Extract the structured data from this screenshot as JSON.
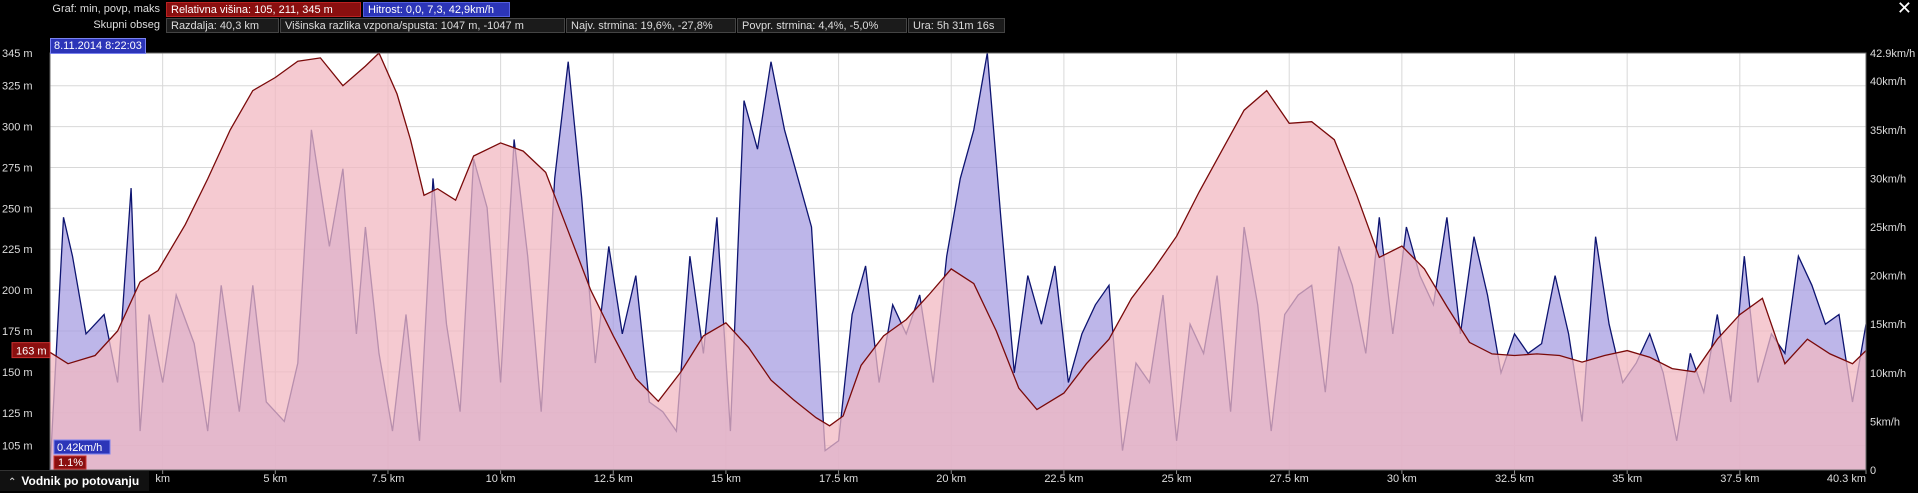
{
  "header": {
    "row1_label": "Graf: min, povp, maks",
    "height_stat": "Relativna višina: 105, 211, 345 m",
    "speed_stat": "Hitrost: 0,0, 7,3, 42,9km/h",
    "row2_label": "Skupni obseg",
    "distance": "Razdalja: 40,3 km",
    "elev_diff": "Višinska razlika vzpona/spusta: 1047 m, -1047 m",
    "max_grade": "Najv. strmina: 19,6%, -27,8%",
    "avg_grade": "Povpr. strmina: 4,4%, -5,0%",
    "time": "Ura: 5h 31m 16s",
    "date": "8.11.2014 8:22:03",
    "close_glyph": "✕"
  },
  "cursor": {
    "elevation_label": "163 m",
    "speed_label": "0.42km/h",
    "grade_label": "1.1%"
  },
  "footer": {
    "caret": "⌃",
    "label": "Vodnik po potovanju"
  },
  "colors": {
    "elevation_line": "#7a0a0a",
    "elevation_fill": "#f2b8c2",
    "speed_line": "#0d1470",
    "speed_fill": "#a79de2",
    "background": "#ffffff",
    "grid": "#d8d8d8"
  },
  "chart_data": {
    "type": "area",
    "xlim": [
      0,
      40.3
    ],
    "x_ticks": [
      "km",
      "5 km",
      "7.5 km",
      "10 km",
      "12.5 km",
      "15 km",
      "17.5 km",
      "20 km",
      "22.5 km",
      "25 km",
      "27.5 km",
      "30 km",
      "32.5 km",
      "35 km",
      "37.5 km",
      "40.3 km"
    ],
    "y_left": {
      "ylim": [
        90,
        345
      ],
      "ticks": [
        "105 m",
        "125 m",
        "150 m",
        "175 m",
        "200 m",
        "225 m",
        "250 m",
        "275 m",
        "300 m",
        "325 m",
        "345 m"
      ]
    },
    "y_right": {
      "ylim": [
        0,
        42.9
      ],
      "ticks": [
        "0",
        "5km/h",
        "10km/h",
        "15km/h",
        "20km/h",
        "25km/h",
        "30km/h",
        "35km/h",
        "40km/h",
        "42.9km/h"
      ]
    },
    "series": [
      {
        "name": "Relativna višina",
        "axis": "left",
        "x": [
          0,
          0.4,
          1.0,
          1.5,
          2.0,
          2.4,
          3.0,
          3.5,
          4.0,
          4.5,
          5.0,
          5.5,
          6.0,
          6.5,
          7.0,
          7.3,
          7.7,
          8.0,
          8.3,
          8.6,
          9.0,
          9.4,
          10.0,
          10.5,
          11.0,
          11.5,
          12.0,
          12.5,
          13.0,
          13.5,
          14.0,
          14.5,
          15.0,
          15.5,
          16.0,
          16.5,
          17.0,
          17.3,
          17.6,
          18.0,
          18.5,
          19.0,
          19.5,
          20.0,
          20.5,
          21.0,
          21.5,
          21.9,
          22.5,
          23.0,
          23.5,
          24.0,
          24.5,
          25.0,
          25.5,
          26.0,
          26.5,
          27.0,
          27.5,
          28.0,
          28.5,
          29.0,
          29.5,
          30.0,
          30.5,
          31.0,
          31.5,
          32.0,
          32.5,
          33.0,
          33.5,
          34.0,
          34.5,
          35.0,
          35.5,
          36.0,
          36.5,
          37.0,
          37.5,
          38.0,
          38.5,
          39.0,
          39.5,
          40.0,
          40.3
        ],
        "y": [
          162,
          155,
          160,
          175,
          205,
          212,
          240,
          268,
          298,
          322,
          330,
          340,
          342,
          325,
          337,
          345,
          320,
          292,
          258,
          262,
          255,
          282,
          290,
          285,
          272,
          236,
          200,
          172,
          146,
          132,
          150,
          172,
          180,
          165,
          145,
          133,
          122,
          117,
          123,
          154,
          172,
          182,
          197,
          213,
          204,
          175,
          140,
          127,
          137,
          155,
          170,
          195,
          213,
          233,
          260,
          285,
          310,
          322,
          302,
          303,
          292,
          258,
          220,
          227,
          213,
          190,
          168,
          161,
          160,
          161,
          160,
          156,
          160,
          163,
          159,
          152,
          150,
          170,
          185,
          195,
          155,
          170,
          161,
          155,
          163
        ]
      },
      {
        "name": "Hitrost",
        "axis": "right",
        "x": [
          0,
          0.3,
          0.5,
          0.8,
          1.2,
          1.5,
          1.8,
          2.0,
          2.2,
          2.5,
          2.8,
          3.2,
          3.5,
          3.8,
          4.2,
          4.5,
          4.8,
          5.2,
          5.5,
          5.8,
          6.2,
          6.5,
          6.8,
          7.0,
          7.3,
          7.6,
          7.9,
          8.2,
          8.5,
          8.8,
          9.1,
          9.4,
          9.7,
          10.0,
          10.3,
          10.6,
          10.9,
          11.2,
          11.5,
          11.8,
          12.1,
          12.4,
          12.7,
          13.0,
          13.3,
          13.6,
          13.9,
          14.2,
          14.5,
          14.8,
          15.1,
          15.4,
          15.7,
          16.0,
          16.3,
          16.6,
          16.9,
          17.2,
          17.5,
          17.8,
          18.1,
          18.4,
          18.7,
          19.0,
          19.3,
          19.6,
          19.9,
          20.2,
          20.5,
          20.8,
          21.1,
          21.4,
          21.7,
          22.0,
          22.3,
          22.6,
          22.9,
          23.2,
          23.5,
          23.8,
          24.1,
          24.4,
          24.7,
          25.0,
          25.3,
          25.6,
          25.9,
          26.2,
          26.5,
          26.8,
          27.1,
          27.4,
          27.7,
          28.0,
          28.3,
          28.6,
          28.9,
          29.2,
          29.5,
          29.8,
          30.1,
          30.4,
          30.7,
          31.0,
          31.3,
          31.6,
          31.9,
          32.2,
          32.5,
          32.8,
          33.1,
          33.4,
          33.7,
          34.0,
          34.3,
          34.6,
          34.9,
          35.2,
          35.5,
          35.8,
          36.1,
          36.4,
          36.7,
          37.0,
          37.3,
          37.6,
          37.9,
          38.2,
          38.5,
          38.8,
          39.1,
          39.4,
          39.7,
          40.0,
          40.3
        ],
        "y": [
          0,
          26,
          22,
          14,
          16,
          9,
          29,
          4,
          16,
          9,
          18,
          13,
          4,
          19,
          6,
          19,
          7,
          5,
          11,
          35,
          23,
          31,
          14,
          25,
          12,
          4,
          16,
          3,
          30,
          15,
          6,
          32,
          27,
          9,
          34,
          22,
          6,
          30,
          42,
          28,
          11,
          23,
          14,
          20,
          7,
          6,
          4,
          22,
          12,
          26,
          4,
          38,
          33,
          42,
          35,
          30,
          25,
          2,
          3,
          16,
          21,
          9,
          17,
          14,
          18,
          9,
          22,
          30,
          35,
          42.9,
          26,
          10,
          20,
          15,
          21,
          9,
          14,
          17,
          19,
          2,
          11,
          9,
          18,
          3,
          15,
          12,
          20,
          6,
          25,
          17,
          4,
          16,
          18,
          19,
          8,
          23,
          19,
          12,
          26,
          14,
          25,
          20,
          17,
          26,
          14,
          24,
          18,
          10,
          14,
          12,
          13,
          20,
          14,
          5,
          24,
          15,
          9,
          11,
          14,
          10,
          3,
          12,
          8,
          16,
          7,
          22,
          9,
          14,
          12,
          22,
          19,
          15,
          16,
          7,
          15
        ]
      }
    ]
  }
}
